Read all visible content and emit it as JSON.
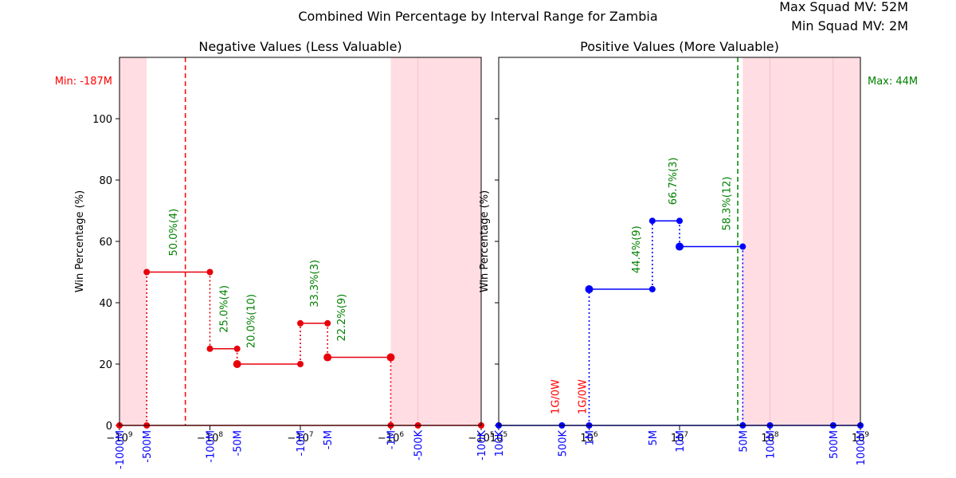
{
  "figure": {
    "title": "Combined Win Percentage by Interval Range for Zambia",
    "max_squad_mv": "Max Squad MV: 52M",
    "min_squad_mv": "Min Squad MV: 2M"
  },
  "colors": {
    "negative": "#e8000b",
    "positive": "#0000ff",
    "annotation": "#008000",
    "zero_label": "#ff0000",
    "shade": "#ffdde2",
    "min_line": "#ff0000",
    "max_line": "#008000",
    "tick_label": "#0000ff"
  },
  "chart_data": [
    {
      "type": "line",
      "panel": "left",
      "title": "Negative Values (Less Valuable)",
      "ylabel": "Win Percentage (%)",
      "xscale": "symlog (negative)",
      "xlim": [
        -1000000000,
        -100000
      ],
      "ylim": [
        0,
        120
      ],
      "yticks": [
        0,
        20,
        40,
        60,
        80,
        100
      ],
      "xticks_major": [
        {
          "value": -1000000000,
          "label": "−10^9"
        },
        {
          "value": -100000000,
          "label": "−10^8"
        },
        {
          "value": -10000000,
          "label": "−10^7"
        },
        {
          "value": -1000000,
          "label": "−10^6"
        },
        {
          "value": -100000,
          "label": "−10^5"
        }
      ],
      "interval_labels": [
        {
          "value": -1000000000,
          "label": "-1000M"
        },
        {
          "value": -500000000,
          "label": "-500M"
        },
        {
          "value": -100000000,
          "label": "-100M"
        },
        {
          "value": -50000000,
          "label": "-50M"
        },
        {
          "value": -10000000,
          "label": "-10M"
        },
        {
          "value": -5000000,
          "label": "-5M"
        },
        {
          "value": -1000000,
          "label": "-1M"
        },
        {
          "value": -500000,
          "label": "-500K"
        },
        {
          "value": -100000,
          "label": "-100K"
        }
      ],
      "shaded_ranges": [
        [
          -1000000000,
          -500000000
        ],
        [
          -1000000,
          -100000
        ]
      ],
      "reference_line": {
        "value": -187000000,
        "label": "Min: -187M"
      },
      "segments": [
        {
          "from": -500000000,
          "to": -100000000,
          "win_pct": 50.0,
          "annotation": "50.0%(4)"
        },
        {
          "from": -100000000,
          "to": -50000000,
          "win_pct": 25.0,
          "annotation": "25.0%(4)"
        },
        {
          "from": -50000000,
          "to": -10000000,
          "win_pct": 20.0,
          "annotation": "20.0%(10)"
        },
        {
          "from": -10000000,
          "to": -5000000,
          "win_pct": 33.3,
          "annotation": "33.3%(3)"
        },
        {
          "from": -5000000,
          "to": -1000000,
          "win_pct": 22.2,
          "annotation": "22.2%(9)"
        }
      ],
      "zero_markers": [
        -1000000000,
        -500000000,
        -1000000,
        -500000,
        -100000
      ]
    },
    {
      "type": "line",
      "panel": "right",
      "title": "Positive Values (More Valuable)",
      "ylabel": "Win Percentage (%)",
      "xscale": "log",
      "xlim": [
        100000,
        1000000000
      ],
      "ylim": [
        0,
        120
      ],
      "yticks": [
        0,
        20,
        40,
        60,
        80,
        100
      ],
      "xticks_major": [
        {
          "value": 100000,
          "label": "10^5"
        },
        {
          "value": 1000000,
          "label": "10^6"
        },
        {
          "value": 10000000,
          "label": "10^7"
        },
        {
          "value": 100000000,
          "label": "10^8"
        },
        {
          "value": 1000000000,
          "label": "10^9"
        }
      ],
      "interval_labels": [
        {
          "value": 100000,
          "label": "100K"
        },
        {
          "value": 500000,
          "label": "500K"
        },
        {
          "value": 1000000,
          "label": "1M"
        },
        {
          "value": 5000000,
          "label": "5M"
        },
        {
          "value": 10000000,
          "label": "10M"
        },
        {
          "value": 50000000,
          "label": "50M"
        },
        {
          "value": 100000000,
          "label": "100M"
        },
        {
          "value": 500000000,
          "label": "500M"
        },
        {
          "value": 1000000000,
          "label": "1000M"
        }
      ],
      "shaded_ranges": [
        [
          50000000,
          1000000000
        ]
      ],
      "reference_line": {
        "value": 44000000,
        "label": "Max: 44M"
      },
      "segments": [
        {
          "from": 1000000,
          "to": 5000000,
          "win_pct": 44.4,
          "annotation": "44.4%(9)"
        },
        {
          "from": 5000000,
          "to": 10000000,
          "win_pct": 66.7,
          "annotation": "66.7%(3)"
        },
        {
          "from": 10000000,
          "to": 50000000,
          "win_pct": 58.3,
          "annotation": "58.3%(12)"
        }
      ],
      "zero_markers": [
        100000,
        500000,
        1000000,
        50000000,
        100000000,
        500000000,
        1000000000
      ],
      "zero_annotations": [
        {
          "value": 500000,
          "label": "1G/0W"
        },
        {
          "value": 1000000,
          "label": "1G/0W"
        }
      ]
    }
  ]
}
